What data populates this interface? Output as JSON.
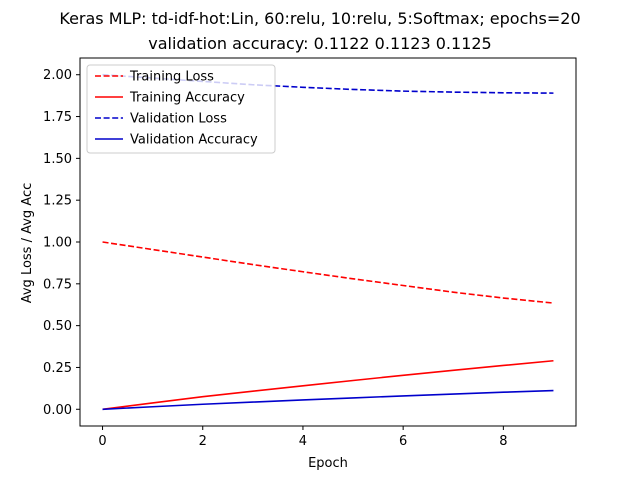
{
  "chart_data": {
    "type": "line",
    "title_line1": "Keras MLP: td-idf-hot:Lin, 60:relu, 10:relu, 5:Softmax; epochs=20",
    "title_line2": "validation accuracy:  0.1122  0.1123  0.1125",
    "xlabel": "Epoch",
    "ylabel": "Avg Loss / Avg Acc",
    "xlim": [
      -0.45,
      9.45
    ],
    "ylim": [
      -0.1,
      2.1
    ],
    "xticks": [
      0,
      2,
      4,
      6,
      8
    ],
    "xtick_labels": [
      "0",
      "2",
      "4",
      "6",
      "8"
    ],
    "yticks": [
      0.0,
      0.25,
      0.5,
      0.75,
      1.0,
      1.25,
      1.5,
      1.75,
      2.0
    ],
    "ytick_labels": [
      "0.00",
      "0.25",
      "0.50",
      "0.75",
      "1.00",
      "1.25",
      "1.50",
      "1.75",
      "2.00"
    ],
    "grid": false,
    "legend_position": "top-left",
    "x": [
      0,
      1,
      2,
      3,
      4,
      5,
      6,
      7,
      8,
      9
    ],
    "series": [
      {
        "name": "Training Loss",
        "color": "#ff0000",
        "dash": true,
        "values": [
          1.0,
          0.955,
          0.91,
          0.865,
          0.822,
          0.78,
          0.74,
          0.7,
          0.665,
          0.635
        ]
      },
      {
        "name": "Training Accuracy",
        "color": "#ff0000",
        "dash": false,
        "values": [
          0.0,
          0.038,
          0.075,
          0.108,
          0.14,
          0.172,
          0.203,
          0.233,
          0.262,
          0.29
        ]
      },
      {
        "name": "Validation Loss",
        "color": "#0000cc",
        "dash": true,
        "values": [
          2.0,
          1.98,
          1.96,
          1.94,
          1.925,
          1.912,
          1.902,
          1.896,
          1.892,
          1.89
        ]
      },
      {
        "name": "Validation Accuracy",
        "color": "#0000cc",
        "dash": false,
        "values": [
          0.0,
          0.015,
          0.03,
          0.043,
          0.056,
          0.068,
          0.08,
          0.091,
          0.102,
          0.112
        ]
      }
    ]
  }
}
